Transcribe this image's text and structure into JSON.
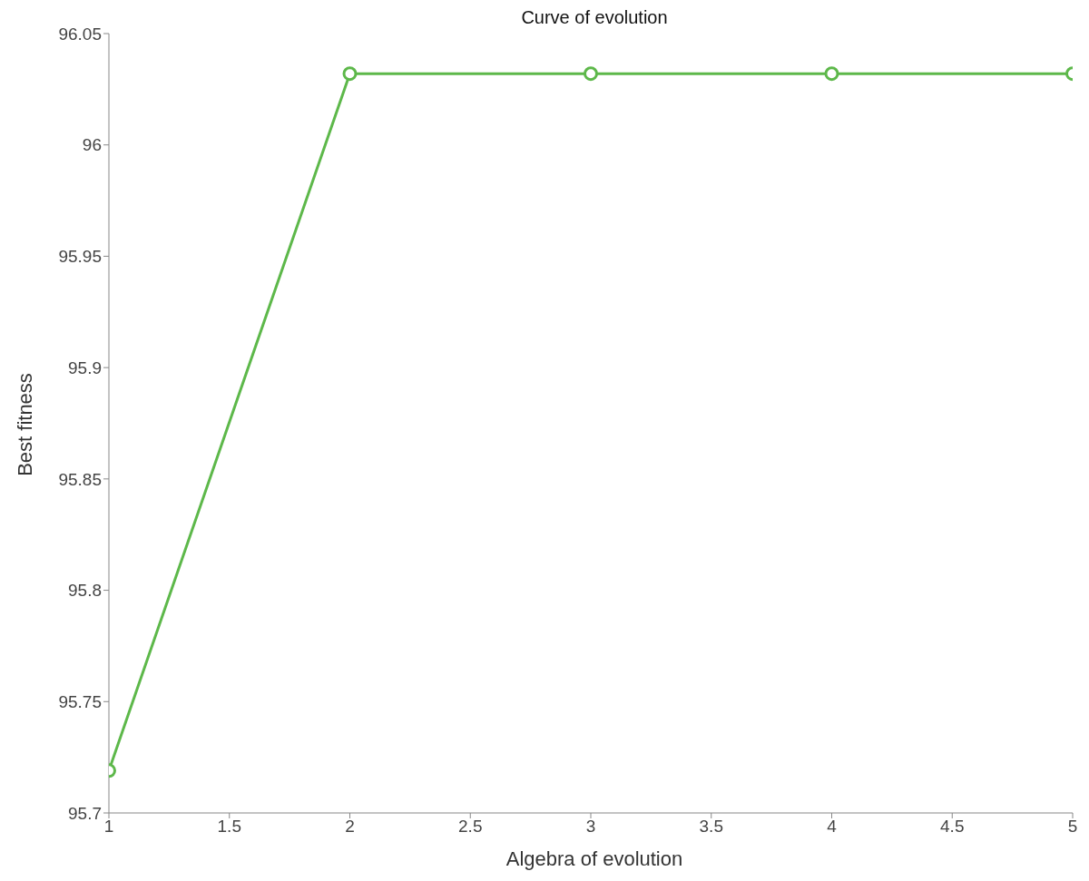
{
  "chart_data": {
    "type": "line",
    "title": "Curve of evolution",
    "xlabel": "Algebra of evolution",
    "ylabel": "Best fitness",
    "x": [
      1,
      2,
      3,
      4,
      5
    ],
    "series": [
      {
        "color": "#5db84a",
        "values": [
          95.719,
          96.032,
          96.032,
          96.032,
          96.032
        ]
      }
    ],
    "xlim": [
      1,
      5
    ],
    "xticks": [
      1,
      1.5,
      2,
      2.5,
      3,
      3.5,
      4,
      4.5,
      5
    ],
    "ylim": [
      95.7,
      96.05
    ],
    "yticks": [
      95.7,
      95.75,
      95.8,
      95.85,
      95.9,
      95.95,
      96,
      96.05
    ],
    "grid": false,
    "legend": false,
    "marker": "circle",
    "line_style": "solid"
  }
}
